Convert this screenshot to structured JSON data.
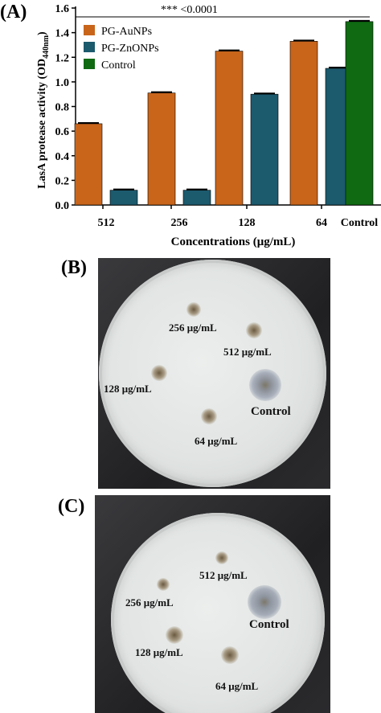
{
  "panels": {
    "a_label": "(A)",
    "b_label": "(B)",
    "c_label": "(C)"
  },
  "chart_data": {
    "type": "bar",
    "ylabel_main": "LasA protease activity (OD",
    "ylabel_sub": "440nm",
    "ylabel_close": ")",
    "xlabel": "Concentrations (μg/mL)",
    "categories": [
      "512",
      "256",
      "128",
      "64",
      "Control"
    ],
    "ylim": [
      0.0,
      1.6
    ],
    "yticks": [
      "0.0",
      "0.2",
      "0.4",
      "0.6",
      "0.8",
      "1.0",
      "1.2",
      "1.4",
      "1.6"
    ],
    "series": [
      {
        "name": "PG-AuNPs",
        "color": "#c8651b",
        "values": [
          0.66,
          0.91,
          1.25,
          1.33,
          null
        ]
      },
      {
        "name": "PG-ZnONPs",
        "color": "#1c5a6e",
        "values": [
          0.12,
          0.12,
          0.9,
          1.11,
          null
        ]
      },
      {
        "name": "Control",
        "color": "#0f6a12",
        "values": [
          null,
          null,
          null,
          null,
          1.49
        ]
      }
    ],
    "legend_position": "top-left",
    "significance": "*** <0.0001"
  },
  "plate_b": {
    "labels": [
      "256 μg/mL",
      "512 μg/mL",
      "128 μg/mL",
      "Control",
      "64 μg/mL"
    ]
  },
  "plate_c": {
    "labels": [
      "512 μg/mL",
      "256 μg/mL",
      "Control",
      "128 μg/mL",
      "64 μg/mL"
    ]
  }
}
